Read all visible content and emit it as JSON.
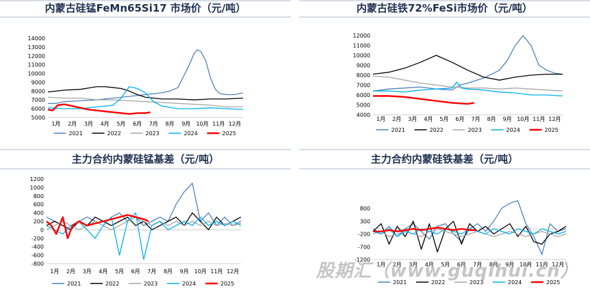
{
  "watermark": "股期汇（www.guqihui.cn）",
  "colors": {
    "2021": "#4f81bd",
    "2022": "#000000",
    "2023": "#a6a6a6",
    "2024": "#00b0f0",
    "2025": "#ff0000"
  },
  "chart_data": [
    {
      "type": "line",
      "title": "内蒙古硅锰FeMn65Si17 市场价（元/吨）",
      "x_ticks": [
        "1月",
        "2月",
        "3月",
        "4月",
        "5月",
        "6月",
        "7月",
        "8月",
        "9月",
        "10月",
        "11月",
        "12月"
      ],
      "ylim": [
        5000,
        14000
      ],
      "y_ticks": [
        5000,
        6000,
        7000,
        8000,
        9000,
        10000,
        11000,
        12000,
        13000,
        14000
      ],
      "legend_position": "bottom",
      "series": [
        {
          "name": "2021",
          "x": [
            1,
            1.5,
            2,
            3,
            4,
            5,
            6,
            7,
            8,
            8.5,
            9,
            9.3,
            9.7,
            10,
            10.2,
            10.4,
            10.7,
            11,
            11.3,
            11.6,
            12,
            12.5,
            13
          ],
          "values": [
            6600,
            6600,
            6800,
            6900,
            7000,
            7200,
            7400,
            7600,
            7800,
            8000,
            8400,
            9500,
            11000,
            12300,
            12700,
            12500,
            11500,
            9500,
            8200,
            7700,
            7600,
            7600,
            7800
          ]
        },
        {
          "name": "2022",
          "x": [
            1,
            2,
            3,
            4,
            4.5,
            5,
            5.5,
            6,
            6.5,
            7,
            8,
            9,
            10,
            11,
            12,
            13
          ],
          "values": [
            7900,
            8100,
            8200,
            8500,
            8500,
            8400,
            8300,
            8000,
            7600,
            7300,
            7100,
            7100,
            7000,
            7100,
            7100,
            7200
          ]
        },
        {
          "name": "2023",
          "x": [
            1,
            2,
            3,
            4,
            5,
            6,
            7,
            8,
            9,
            10,
            11,
            12,
            13
          ],
          "values": [
            7300,
            7200,
            7200,
            7000,
            7000,
            6900,
            6800,
            6700,
            6600,
            6500,
            6400,
            6200,
            6200
          ]
        },
        {
          "name": "2024",
          "x": [
            1,
            2,
            3,
            4,
            5,
            5.5,
            6,
            6.5,
            7,
            7.5,
            8,
            9,
            10,
            11,
            12,
            13
          ],
          "values": [
            6100,
            6000,
            6000,
            6200,
            6400,
            7200,
            8500,
            8300,
            7800,
            6800,
            6300,
            6000,
            6000,
            6100,
            6000,
            5900
          ]
        },
        {
          "name": "2025",
          "x": [
            1,
            1.3,
            1.6,
            2,
            2.5,
            3,
            3.5,
            4,
            4.5,
            5,
            5.5,
            6,
            6.5,
            7,
            7.3
          ],
          "values": [
            5900,
            5800,
            6400,
            6500,
            6300,
            6100,
            5900,
            5800,
            5700,
            5600,
            5500,
            5400,
            5500,
            5500,
            5600
          ]
        }
      ]
    },
    {
      "type": "line",
      "title": "内蒙古硅铁72%FeSi市场价（元/吨）",
      "x_ticks": [
        "1月",
        "2月",
        "3月",
        "4月",
        "5月",
        "6月",
        "7月",
        "8月",
        "9月",
        "10月",
        "11月",
        "12月"
      ],
      "ylim": [
        4000,
        12000
      ],
      "y_ticks": [
        4000,
        5000,
        6000,
        7000,
        8000,
        9000,
        10000,
        11000,
        12000
      ],
      "legend_position": "bottom",
      "series": [
        {
          "name": "2021",
          "x": [
            1,
            1.5,
            2,
            3,
            4,
            5,
            6,
            6.5,
            7,
            8,
            9,
            9.5,
            10,
            10.5,
            11,
            11.5,
            12,
            12.5,
            13
          ],
          "values": [
            6400,
            6500,
            6600,
            6700,
            6800,
            6600,
            6500,
            7000,
            7200,
            7700,
            8500,
            9500,
            11000,
            12000,
            11000,
            9000,
            8500,
            8200,
            8100
          ]
        },
        {
          "name": "2022",
          "x": [
            1,
            2,
            3,
            4,
            5,
            6,
            7,
            8,
            9,
            10,
            11,
            12,
            13
          ],
          "values": [
            8100,
            8300,
            8700,
            9300,
            10000,
            9300,
            8500,
            7800,
            7500,
            7800,
            8000,
            8100,
            8100
          ]
        },
        {
          "name": "2023",
          "x": [
            1,
            2,
            3,
            4,
            5,
            6,
            7,
            8,
            9,
            10,
            11,
            12,
            13
          ],
          "values": [
            7900,
            7800,
            7500,
            7200,
            7000,
            6800,
            6700,
            6700,
            6600,
            6700,
            6600,
            6500,
            6400
          ]
        },
        {
          "name": "2024",
          "x": [
            1,
            2,
            3,
            4,
            5,
            6,
            6.3,
            6.6,
            7,
            8,
            9,
            10,
            11,
            12,
            13
          ],
          "values": [
            6400,
            6400,
            6300,
            6500,
            6600,
            6700,
            7300,
            6700,
            6600,
            6500,
            6300,
            6200,
            6000,
            6000,
            5900
          ]
        },
        {
          "name": "2025",
          "x": [
            1,
            2,
            3,
            4,
            5,
            6,
            7,
            7.4
          ],
          "values": [
            5900,
            5900,
            5800,
            5600,
            5400,
            5200,
            5100,
            5200
          ]
        }
      ]
    },
    {
      "type": "line",
      "title": "主力合约内蒙硅锰基差（元/吨）",
      "x_ticks": [
        "1月",
        "2月",
        "3月",
        "4月",
        "5月",
        "6月",
        "7月",
        "8月",
        "9月",
        "10月",
        "11月",
        "12月"
      ],
      "ylim": [
        -800,
        1200
      ],
      "y_ticks": [
        -800,
        -600,
        -400,
        -200,
        0,
        200,
        400,
        600,
        800,
        1000,
        1200
      ],
      "legend_position": "bottom",
      "series": [
        {
          "name": "2021",
          "x": [
            1,
            1.5,
            2,
            2.5,
            3,
            3.5,
            4,
            4.5,
            5,
            5.5,
            6,
            6.5,
            7,
            7.5,
            8,
            8.5,
            9,
            9.5,
            10,
            10.5,
            11,
            11.5,
            12,
            12.5,
            13
          ],
          "values": [
            300,
            200,
            100,
            0,
            200,
            300,
            200,
            100,
            300,
            400,
            200,
            300,
            100,
            200,
            300,
            200,
            600,
            900,
            1100,
            200,
            400,
            100,
            300,
            100,
            200
          ]
        },
        {
          "name": "2022",
          "x": [
            1,
            1.5,
            2,
            2.5,
            3,
            3.5,
            4,
            4.5,
            5,
            5.5,
            6,
            6.5,
            7,
            7.5,
            8,
            8.5,
            9,
            9.5,
            10,
            10.5,
            11,
            11.5,
            12,
            12.5,
            13
          ],
          "values": [
            100,
            200,
            100,
            0,
            200,
            100,
            300,
            200,
            100,
            200,
            300,
            100,
            200,
            0,
            100,
            200,
            300,
            100,
            400,
            200,
            0,
            300,
            100,
            200,
            300
          ]
        },
        {
          "name": "2023",
          "x": [
            1,
            1.5,
            2,
            2.5,
            3,
            3.5,
            4,
            4.5,
            5,
            5.5,
            6,
            6.5,
            7,
            7.5,
            8,
            8.5,
            9,
            9.5,
            10,
            10.5,
            11,
            11.5,
            12,
            12.5,
            13
          ],
          "values": [
            0,
            100,
            200,
            100,
            0,
            100,
            200,
            100,
            0,
            100,
            200,
            300,
            200,
            100,
            200,
            100,
            200,
            100,
            200,
            100,
            200,
            100,
            150,
            100,
            150
          ]
        },
        {
          "name": "2024",
          "x": [
            1,
            1.5,
            2,
            2.5,
            3,
            3.5,
            4,
            4.5,
            5,
            5.5,
            6,
            6.5,
            7,
            7.5,
            8,
            8.5,
            9,
            9.5,
            10,
            10.5,
            11,
            11.5,
            12,
            12.5,
            13
          ],
          "values": [
            100,
            0,
            -100,
            100,
            200,
            0,
            -200,
            100,
            300,
            -600,
            200,
            400,
            -700,
            100,
            200,
            0,
            100,
            200,
            100,
            300,
            100,
            200,
            100,
            200,
            100
          ]
        },
        {
          "name": "2025",
          "x": [
            1,
            1.3,
            1.6,
            2,
            2.3,
            2.6,
            3,
            3.5,
            4,
            4.5,
            5,
            5.5,
            6,
            6.5,
            7,
            7.3
          ],
          "values": [
            200,
            100,
            -100,
            300,
            -200,
            100,
            200,
            100,
            150,
            200,
            250,
            300,
            350,
            300,
            250,
            200
          ]
        }
      ]
    },
    {
      "type": "line",
      "title": "主力合约内蒙硅铁基差（元/吨）",
      "x_ticks": [
        "1月",
        "2月",
        "3月",
        "4月",
        "5月",
        "6月",
        "7月",
        "8月",
        "9月",
        "10月",
        "11月",
        "12月"
      ],
      "ylim": [
        -1200,
        1200
      ],
      "y_ticks": [
        -1200,
        -700,
        -200,
        300,
        800
      ],
      "legend_position": "bottom",
      "series": [
        {
          "name": "2021",
          "x": [
            1,
            1.5,
            2,
            2.5,
            3,
            3.5,
            4,
            4.5,
            5,
            5.5,
            6,
            6.5,
            7,
            7.5,
            8,
            8.5,
            9,
            9.5,
            10,
            10.5,
            11,
            11.5,
            12,
            12.5,
            13
          ],
          "values": [
            0,
            -200,
            100,
            -300,
            0,
            200,
            -100,
            -400,
            100,
            200,
            -200,
            -500,
            0,
            200,
            -100,
            300,
            800,
            1000,
            1100,
            200,
            -300,
            -1000,
            200,
            -100,
            0
          ]
        },
        {
          "name": "2022",
          "x": [
            1,
            1.5,
            2,
            2.5,
            3,
            3.5,
            4,
            4.5,
            5,
            5.5,
            6,
            6.5,
            7,
            7.5,
            8,
            8.5,
            9,
            9.5,
            10,
            10.5,
            11,
            11.5,
            12,
            12.5,
            13
          ],
          "values": [
            -100,
            200,
            -600,
            100,
            -300,
            300,
            -800,
            200,
            -900,
            0,
            300,
            -600,
            200,
            -100,
            100,
            -200,
            0,
            200,
            -300,
            100,
            -500,
            -600,
            -200,
            -100,
            100
          ]
        },
        {
          "name": "2023",
          "x": [
            1,
            1.5,
            2,
            2.5,
            3,
            3.5,
            4,
            4.5,
            5,
            5.5,
            6,
            6.5,
            7,
            7.5,
            8,
            8.5,
            9,
            9.5,
            10,
            10.5,
            11,
            11.5,
            12,
            12.5,
            13
          ],
          "values": [
            -200,
            -100,
            -300,
            -200,
            -100,
            -200,
            -300,
            -100,
            0,
            -100,
            -200,
            -300,
            -200,
            -100,
            -200,
            -300,
            -200,
            -100,
            -200,
            -300,
            -200,
            -100,
            -200,
            -300,
            -200
          ]
        },
        {
          "name": "2024",
          "x": [
            1,
            1.5,
            2,
            2.5,
            3,
            3.5,
            4,
            4.5,
            5,
            5.5,
            6,
            6.5,
            7,
            7.5,
            8,
            8.5,
            9,
            9.5,
            10,
            10.5,
            11,
            11.5,
            12,
            12.5,
            13
          ],
          "values": [
            -100,
            -200,
            0,
            -300,
            -100,
            -200,
            0,
            -100,
            -200,
            0,
            -100,
            -200,
            0,
            -100,
            -200,
            0,
            -100,
            -200,
            0,
            -100,
            -200,
            0,
            -100,
            -200,
            -100
          ]
        },
        {
          "name": "2025",
          "x": [
            1,
            1.5,
            2,
            2.5,
            3,
            3.5,
            4,
            4.5,
            5,
            5.5,
            6,
            6.5,
            7,
            7.4
          ],
          "values": [
            -100,
            -100,
            -50,
            -100,
            -50,
            0,
            -50,
            0,
            50,
            0,
            -50,
            0,
            -50,
            -50
          ]
        }
      ]
    }
  ]
}
